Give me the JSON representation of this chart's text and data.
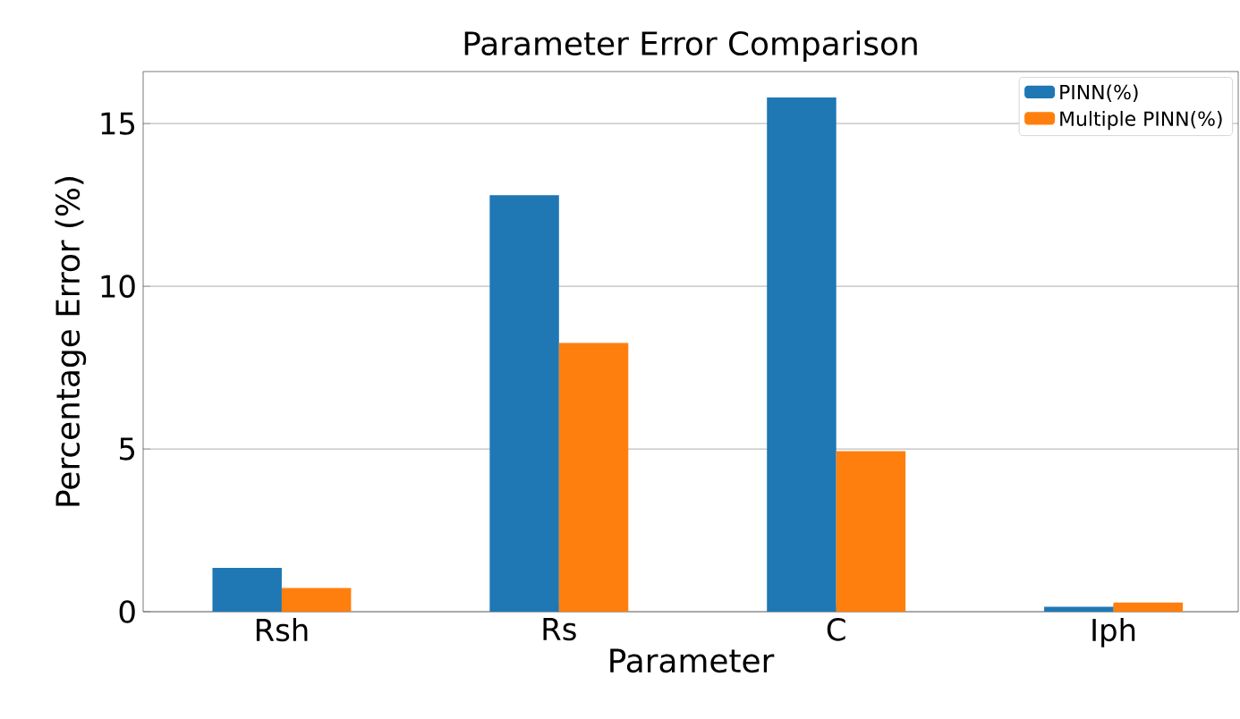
{
  "chart_data": {
    "type": "bar",
    "title": "Parameter Error Comparison",
    "xlabel": "Parameter",
    "ylabel": "Percentage Error (%)",
    "categories": [
      "Rsh",
      "Rs",
      "C",
      "Iph"
    ],
    "series": [
      {
        "name": "PINN(%)",
        "color": "#1f77b4",
        "values": [
          1.35,
          12.8,
          15.8,
          0.15
        ]
      },
      {
        "name": "Multiple PINN(%)",
        "color": "#ff7f0e",
        "values": [
          0.73,
          8.26,
          4.93,
          0.28
        ]
      }
    ],
    "ylim": [
      0,
      16.6
    ],
    "yticks": [
      0,
      5,
      10,
      15
    ],
    "grid": "y",
    "legend": "top right"
  }
}
